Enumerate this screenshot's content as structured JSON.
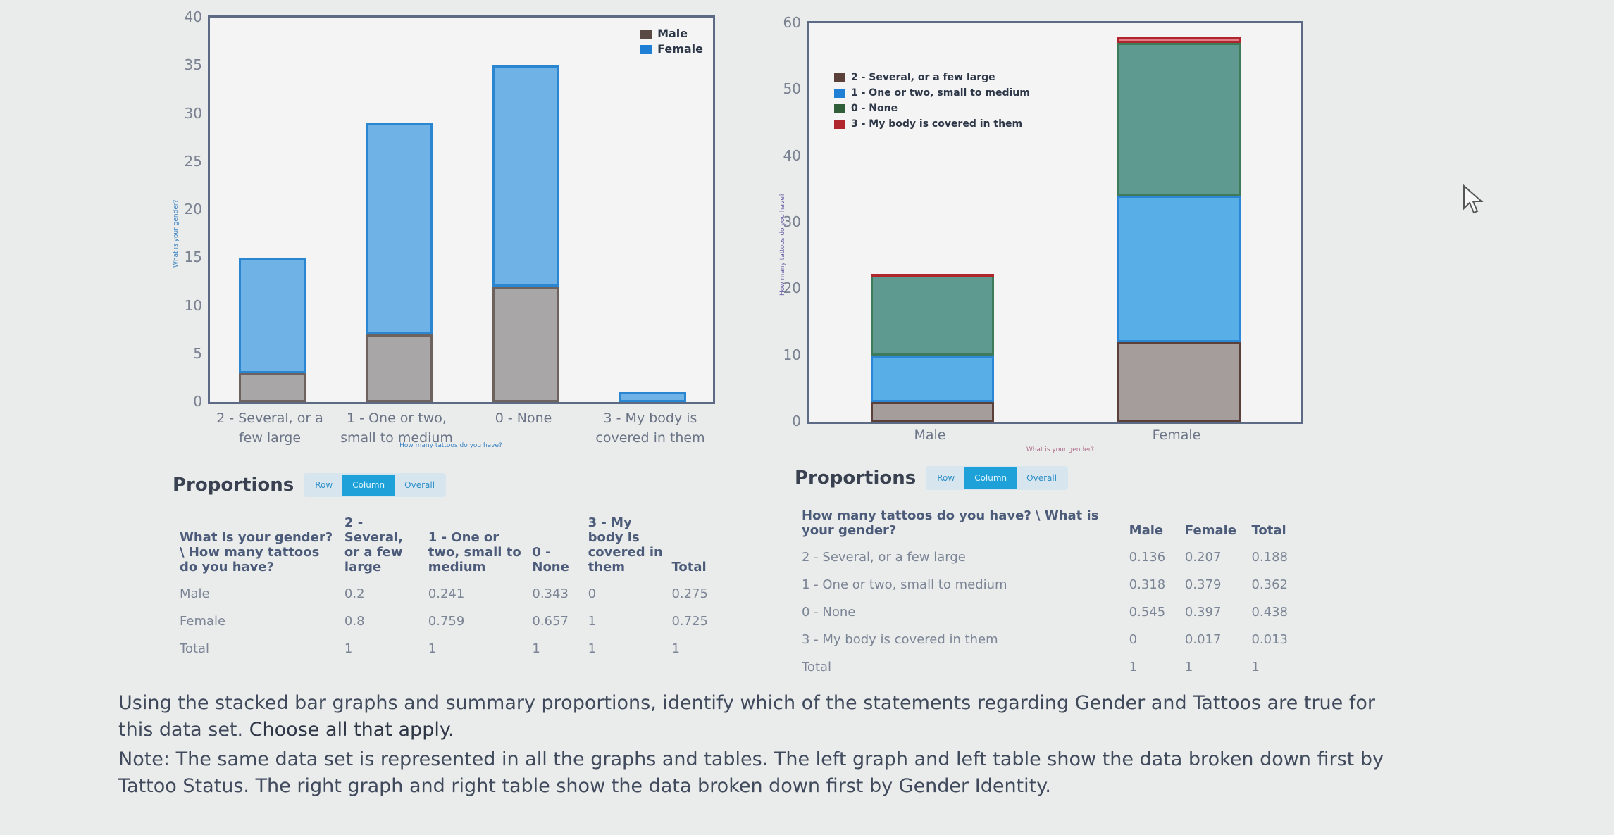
{
  "left_chart": {
    "legend": [
      {
        "label": "Male",
        "color": "#a9a6a6"
      },
      {
        "label": "Female",
        "color": "#6fb2e6"
      }
    ],
    "y_ticks": [
      "40",
      "35",
      "30",
      "25",
      "20",
      "15",
      "10",
      "5",
      "0"
    ],
    "y_label": "What is your gender?",
    "x_label": "How many tattoos do you have?",
    "categories": [
      {
        "line1": "2 - Several, or a",
        "line2": "few large"
      },
      {
        "line1": "1 - One or two,",
        "line2": "small to medium"
      },
      {
        "line1": "0 - None",
        "line2": ""
      },
      {
        "line1": "3 - My body is",
        "line2": "covered in them"
      }
    ]
  },
  "right_chart": {
    "legend": [
      {
        "label": "2 - Several, or a few large",
        "color": "#8a7f7c"
      },
      {
        "label": "1 - One or two, small to medium",
        "color": "#2b87d6"
      },
      {
        "label": "0 - None",
        "color": "#3f8a5a"
      },
      {
        "label": "3 - My body is covered in them",
        "color": "#c2393f"
      }
    ],
    "y_ticks": [
      "60",
      "50",
      "40",
      "30",
      "20",
      "10",
      "0"
    ],
    "y_label": "How many tattoos do you have?",
    "x_label": "What is your gender?",
    "categories": [
      "Male",
      "Female"
    ]
  },
  "chart_data": [
    {
      "type": "bar",
      "stacked": true,
      "title": "",
      "xlabel": "How many tattoos do you have?",
      "ylabel": "What is your gender?",
      "ylim": [
        0,
        40
      ],
      "categories": [
        "2 - Several, or a few large",
        "1 - One or two, small to medium",
        "0 - None",
        "3 - My body is covered in them"
      ],
      "series": [
        {
          "name": "Male",
          "values": [
            3,
            7,
            12,
            0
          ]
        },
        {
          "name": "Female",
          "values": [
            12,
            22,
            23,
            1
          ]
        }
      ],
      "legend_position": "top-right",
      "grid": false
    },
    {
      "type": "bar",
      "stacked": true,
      "title": "",
      "xlabel": "What is your gender?",
      "ylabel": "How many tattoos do you have?",
      "ylim": [
        0,
        60
      ],
      "categories": [
        "Male",
        "Female"
      ],
      "series": [
        {
          "name": "2 - Several, or a few large",
          "values": [
            3,
            12
          ]
        },
        {
          "name": "1 - One or two, small to medium",
          "values": [
            7,
            22
          ]
        },
        {
          "name": "0 - None",
          "values": [
            12,
            23
          ]
        },
        {
          "name": "3 - My body is covered in them",
          "values": [
            0,
            1
          ]
        }
      ],
      "legend_position": "top-left",
      "grid": false
    },
    {
      "type": "table",
      "title": "Proportions (Column) - left",
      "columns": [
        "What is your gender? \\ How many tattoos do you have?",
        "2 - Several, or a few large",
        "1 - One or two, small to medium",
        "0 - None",
        "3 - My body is covered in them",
        "Total"
      ],
      "rows": [
        [
          "Male",
          0.2,
          0.241,
          0.343,
          0,
          0.275
        ],
        [
          "Female",
          0.8,
          0.759,
          0.657,
          1,
          0.725
        ],
        [
          "Total",
          1,
          1,
          1,
          1,
          1
        ]
      ]
    },
    {
      "type": "table",
      "title": "Proportions (Column) - right",
      "columns": [
        "How many tattoos do you have? \\ What is your gender?",
        "Male",
        "Female",
        "Total"
      ],
      "rows": [
        [
          "2 - Several, or a few large",
          0.136,
          0.207,
          0.188
        ],
        [
          "1 - One or two, small to medium",
          0.318,
          0.379,
          0.362
        ],
        [
          "0 - None",
          0.545,
          0.397,
          0.438
        ],
        [
          "3 - My body is covered in them",
          0,
          0.017,
          0.013
        ],
        [
          "Total",
          1,
          1,
          1
        ]
      ]
    }
  ],
  "left_table": {
    "title": "Proportions",
    "buttons": [
      "Row",
      "Column",
      "Overall"
    ],
    "active": "Column",
    "headers": [
      "What is your gender? \\ How many tattoos do you have?",
      "2 - Several, or a few large",
      "1 - One or two, small to medium",
      "0 - None",
      "3 - My body is covered in them",
      "Total"
    ],
    "rows": [
      [
        "Male",
        "0.2",
        "0.241",
        "0.343",
        "0",
        "0.275"
      ],
      [
        "Female",
        "0.8",
        "0.759",
        "0.657",
        "1",
        "0.725"
      ],
      [
        "Total",
        "1",
        "1",
        "1",
        "1",
        "1"
      ]
    ]
  },
  "right_table": {
    "title": "Proportions",
    "buttons": [
      "Row",
      "Column",
      "Overall"
    ],
    "active": "Column",
    "headers": [
      "How many tattoos do you have? \\ What is your gender?",
      "Male",
      "Female",
      "Total"
    ],
    "rows": [
      [
        "2 - Several, or a few large",
        "0.136",
        "0.207",
        "0.188"
      ],
      [
        "1 - One or two, small to medium",
        "0.318",
        "0.379",
        "0.362"
      ],
      [
        "0 - None",
        "0.545",
        "0.397",
        "0.438"
      ],
      [
        "3 - My body is covered in them",
        "0",
        "0.017",
        "0.013"
      ],
      [
        "Total",
        "1",
        "1",
        "1"
      ]
    ]
  },
  "question": {
    "prompt": "Using the stacked bar graphs and summary proportions, identify which of the statements regarding Gender and Tattoos are true for this data set.",
    "instruction": "Choose all that apply.",
    "note": "Note: The same data set is represented in all the graphs and tables. The left graph and left table show the data broken down first by Tattoo Status. The right graph and right table show the data broken down first by Gender Identity."
  }
}
